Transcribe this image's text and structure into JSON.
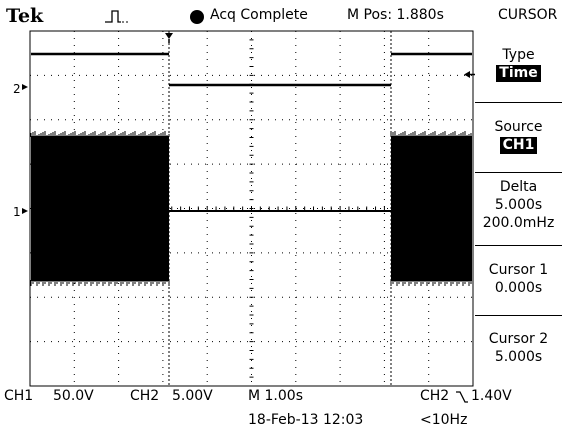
{
  "header": {
    "brand": "Tek",
    "trigger_icon": "trigger-pulse-icon",
    "acq_status": "Acq Complete",
    "m_pos": "M Pos: 1.880s",
    "menu_title": "CURSOR"
  },
  "menu": {
    "type_label": "Type",
    "type_value": "Time",
    "source_label": "Source",
    "source_value": "CH1",
    "delta_label": "Delta",
    "delta_time": "5.000s",
    "delta_freq": "200.0mHz",
    "cursor1_label": "Cursor 1",
    "cursor1_value": "0.000s",
    "cursor2_label": "Cursor 2",
    "cursor2_value": "5.000s"
  },
  "markers": {
    "ch2_level": "2",
    "ch1_level": "1"
  },
  "footer": {
    "ch1_label": "CH1",
    "ch1_scale": "50.0V",
    "ch2_label": "CH2",
    "ch2_scale": "5.00V",
    "time_label": "M 1.00s",
    "trigger_source": "CH2",
    "trigger_slope_icon": "falling-edge-icon",
    "trigger_level": "1.40V",
    "date_time": "18-Feb-13 12:03",
    "trigger_freq": "<10Hz"
  },
  "colors": {
    "trace": "#000000",
    "graticule": "#000000",
    "background": "#ffffff"
  }
}
